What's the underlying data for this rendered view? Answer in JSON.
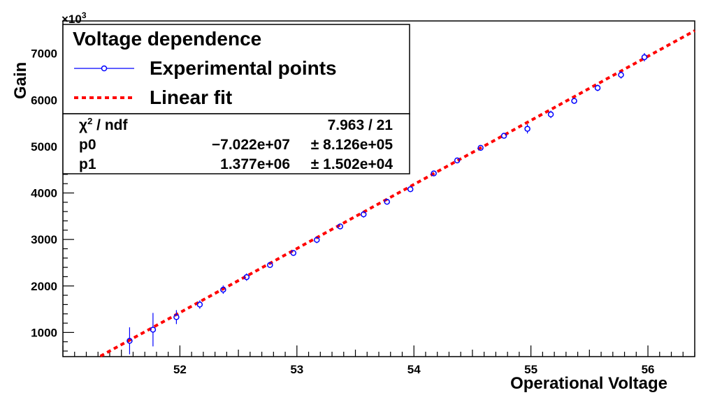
{
  "chart_data": {
    "type": "scatter",
    "title": "Voltage dependence",
    "xlabel": "Operational Voltage",
    "ylabel": "Gain",
    "y_multiplier_label": "×10",
    "y_multiplier_exp": "3",
    "xlim": [
      51.0,
      56.4
    ],
    "ylim": [
      0,
      7700
    ],
    "visible_ylim": [
      450,
      7700
    ],
    "x_ticks": [
      52,
      53,
      54,
      55,
      56
    ],
    "y_ticks": [
      1000,
      2000,
      3000,
      4000,
      5000,
      6000,
      7000
    ],
    "grid": false,
    "legend_position": "top-left",
    "series": [
      {
        "name": "Experimental points",
        "color": "#0000ff",
        "marker": "open-circle",
        "x": [
          51.57,
          51.77,
          51.97,
          52.17,
          52.37,
          52.57,
          52.77,
          52.97,
          53.17,
          53.37,
          53.57,
          53.77,
          53.97,
          54.17,
          54.37,
          54.57,
          54.77,
          54.97,
          55.17,
          55.37,
          55.57,
          55.77,
          55.97
        ],
        "y": [
          820,
          1060,
          1330,
          1600,
          1920,
          2190,
          2450,
          2710,
          2990,
          3280,
          3540,
          3810,
          4080,
          4420,
          4700,
          4970,
          5230,
          5380,
          5690,
          5980,
          6260,
          6540,
          6920
        ],
        "yerr": [
          290,
          360,
          150,
          90,
          90,
          80,
          60,
          60,
          70,
          50,
          70,
          60,
          60,
          40,
          40,
          40,
          50,
          100,
          80,
          60,
          70,
          80,
          90
        ]
      },
      {
        "name": "Linear fit",
        "color": "#ff0000",
        "line_style": "dashed",
        "x": [
          51.32,
          56.4
        ],
        "y": [
          490,
          7490
        ]
      }
    ],
    "stats": [
      {
        "label": "χ² / ndf",
        "value": "7.963 / 21",
        "error": ""
      },
      {
        "label": "p0",
        "value": "−7.022e+07",
        "error": "± 8.126e+05"
      },
      {
        "label": "p1",
        "value": "1.377e+06",
        "error": "± 1.502e+04"
      }
    ],
    "stats_labels": {
      "chi": "χ",
      "chi_sup": "2",
      "ndf": " / ndf"
    }
  }
}
